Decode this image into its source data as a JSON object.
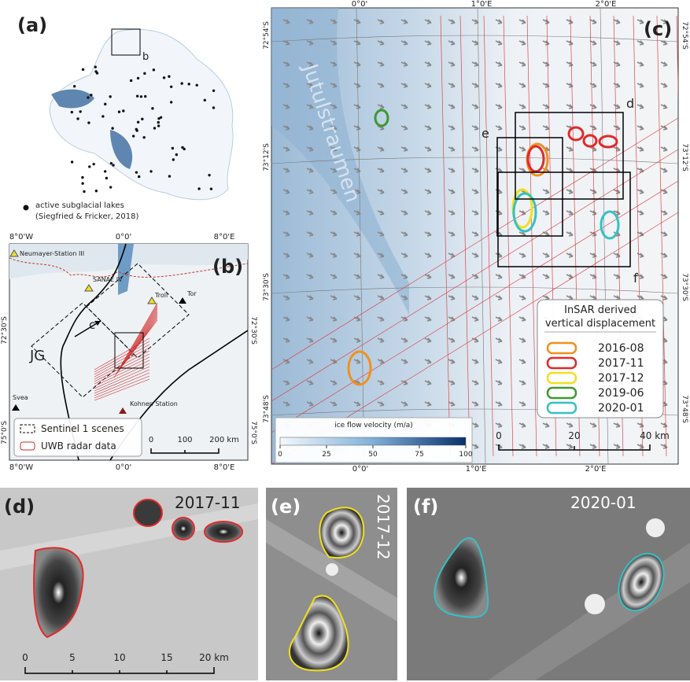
{
  "panel_a": {
    "label": "(a)",
    "inset": "b",
    "legend": {
      "symbol_label": "active subglacial lakes",
      "source": "(Siegfried & Fricker, 2018)"
    }
  },
  "panel_b": {
    "label": "(b)",
    "top_lon": [
      "8°0'W",
      "0°0'",
      "8°0'E"
    ],
    "bottom_lon": [
      "8°0'W",
      "0°0'",
      "8°0'E"
    ],
    "left_lat": [
      "72°30'S",
      "75°0'S"
    ],
    "right_lat": [
      "72°30'S",
      "75°0'S"
    ],
    "places": [
      "Neumayer-Station III",
      "SANAE IV",
      "Troll",
      "Tor",
      "Svea",
      "Kohnen Station"
    ],
    "annotations": [
      "JG",
      "c"
    ],
    "legend": [
      "Sentinel 1 scenes",
      "UWB radar data"
    ],
    "scale": [
      "0",
      "100",
      "200 km"
    ]
  },
  "panel_c": {
    "label": "(c)",
    "glacier": "Jutulstraumen",
    "boxes": [
      "d",
      "e",
      "f"
    ],
    "top_lon": [
      "0°0'",
      "1°0'E",
      "2°0'E"
    ],
    "bottom_lon": [
      "0°0'",
      "1°0'E",
      "2°0'E"
    ],
    "left_lat": [
      "72°54'S",
      "73°12'S",
      "73°30'S",
      "73°48'S"
    ],
    "right_lat": [
      "72°54'S",
      "73°12'S",
      "73°30'S",
      "73°48'S"
    ],
    "legend": {
      "title": [
        "InSAR derived",
        "vertical displacement"
      ],
      "entries": [
        {
          "name": "2016-08",
          "color": "#f0901e"
        },
        {
          "name": "2017-11",
          "color": "#e02a2a"
        },
        {
          "name": "2017-12",
          "color": "#f0e020"
        },
        {
          "name": "2019-06",
          "color": "#3a9a30"
        },
        {
          "name": "2020-01",
          "color": "#36c0c4"
        }
      ]
    },
    "colorbar": {
      "title": "ice flow velocity (m/a)",
      "range": [
        0,
        100
      ],
      "ticks": [
        0,
        25,
        50,
        75,
        100
      ]
    },
    "scale": [
      "0",
      "20",
      "40 km"
    ]
  },
  "panel_d": {
    "label": "(d)",
    "date": "2017-11",
    "scale": [
      "0",
      "5",
      "10",
      "15",
      "20 km"
    ]
  },
  "panel_e": {
    "label": "(e)",
    "date": "2017-12"
  },
  "panel_f": {
    "label": "(f)",
    "date": "2020-01"
  }
}
